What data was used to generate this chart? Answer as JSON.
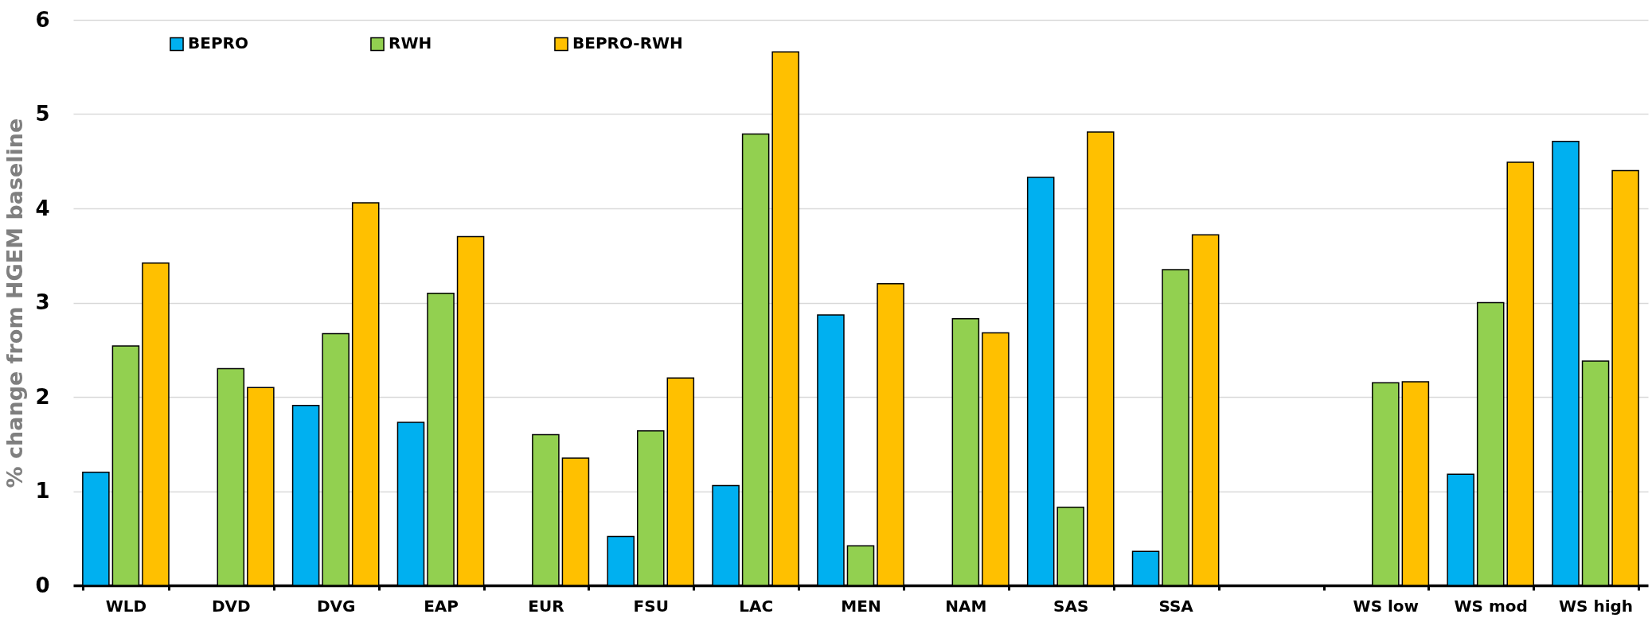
{
  "chart_data": {
    "type": "bar",
    "ylabel": "% change from HGEM baseline",
    "categories": [
      "WLD",
      "DVD",
      "DVG",
      "EAP",
      "EUR",
      "FSU",
      "LAC",
      "MEN",
      "NAM",
      "SAS",
      "SSA",
      null,
      "WS low",
      "WS mod",
      "WS high"
    ],
    "series": [
      {
        "name": "BEPRO",
        "color": "#00b0f0",
        "values": [
          1.2,
          null,
          1.91,
          1.73,
          null,
          0.52,
          1.06,
          2.87,
          null,
          4.33,
          0.36,
          null,
          null,
          1.18,
          4.71
        ]
      },
      {
        "name": "RWH",
        "color": "#92d050",
        "values": [
          2.54,
          2.3,
          2.67,
          3.1,
          1.6,
          1.64,
          4.79,
          0.42,
          2.83,
          0.83,
          3.35,
          null,
          2.15,
          3.0,
          2.38
        ]
      },
      {
        "name": "BEPRO-RWH",
        "color": "#ffc000",
        "values": [
          3.42,
          2.1,
          4.06,
          3.7,
          1.35,
          2.2,
          5.66,
          3.2,
          2.68,
          4.81,
          3.72,
          null,
          2.16,
          4.49,
          4.4
        ]
      }
    ],
    "ylim": [
      0,
      6
    ],
    "yticks": [
      0,
      1,
      2,
      3,
      4,
      5,
      6
    ],
    "grid": "y",
    "legend": "top left"
  }
}
